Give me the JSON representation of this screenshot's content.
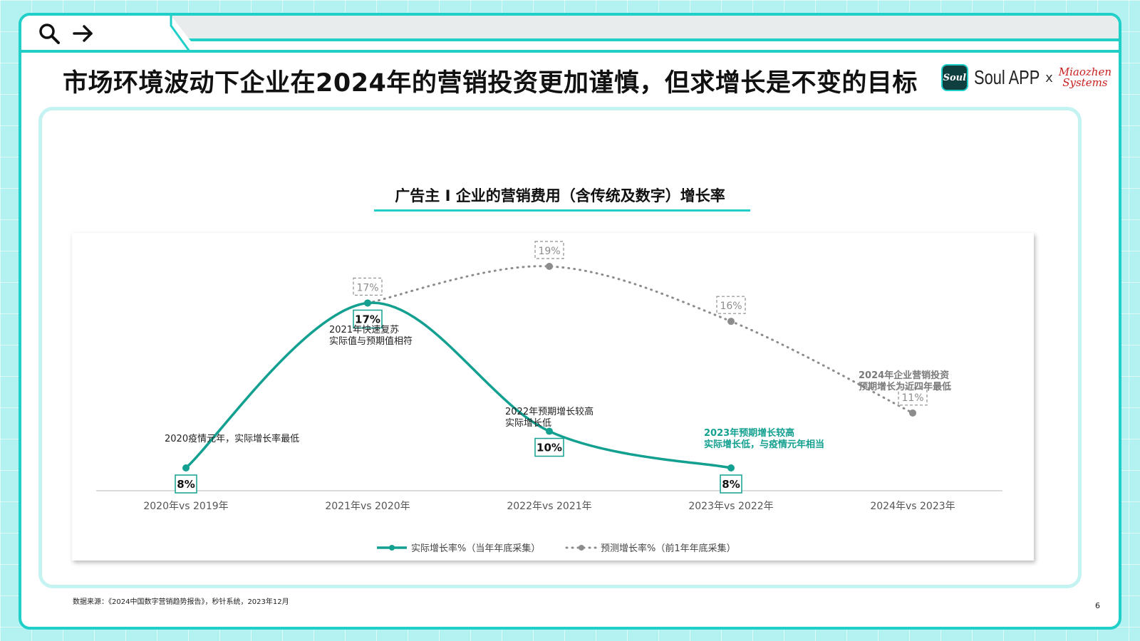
{
  "header": {
    "title": "市场环境波动下企业在2024年的营销投资更加谨慎，但求增长是不变的目标",
    "brand_left_logo": "Soul",
    "brand_left_text": "Soul APP",
    "brand_sep": "x",
    "brand_right_line1": "Miaozhen",
    "brand_right_line2": "Systems",
    "icons": [
      "search-icon",
      "arrow-right-icon"
    ]
  },
  "colors": {
    "accent": "#20d0c8",
    "actual_series": "#13a090",
    "forecast_series": "#8c8c8c",
    "highlight_text": "#13a090"
  },
  "chart_data": {
    "type": "line",
    "title": "广告主 I 企业的营销费用（含传统及数字）增长率",
    "categories": [
      "2020年vs 2019年",
      "2021年vs 2020年",
      "2022年vs 2021年",
      "2023年vs 2022年",
      "2024年vs 2023年"
    ],
    "series": [
      {
        "name": "实际增长率%（当年年底采集）",
        "values": [
          8,
          17,
          10,
          8,
          null
        ],
        "labels": [
          "8%",
          "17%",
          "10%",
          "8%",
          ""
        ]
      },
      {
        "name": "预测增长率%（前1年年底采集）",
        "values": [
          null,
          17,
          19,
          16,
          11
        ],
        "labels": [
          "",
          "17%",
          "19%",
          "16%",
          "11%"
        ]
      }
    ],
    "annotations": [
      {
        "lines": [
          "2020疫情元年，实际增长率最低"
        ],
        "style": "normal"
      },
      {
        "lines": [
          "2021年快速复苏",
          "实际值与预期值相符"
        ],
        "style": "normal"
      },
      {
        "lines": [
          "2022年预期增长较高",
          "实际增长低"
        ],
        "style": "normal"
      },
      {
        "lines": [
          "2023年预期增长较高",
          "实际增长低，与疫情元年相当"
        ],
        "style": "highlight"
      },
      {
        "lines": [
          "2024年企业营销投资",
          "预期增长为近四年最低"
        ],
        "style": "muted"
      }
    ],
    "legend_position": "bottom-center",
    "grid": false
  },
  "footer": {
    "source": "数据来源：《2024中国数字营销趋势报告》，秒针系统，2023年12月",
    "page_number": "6"
  }
}
